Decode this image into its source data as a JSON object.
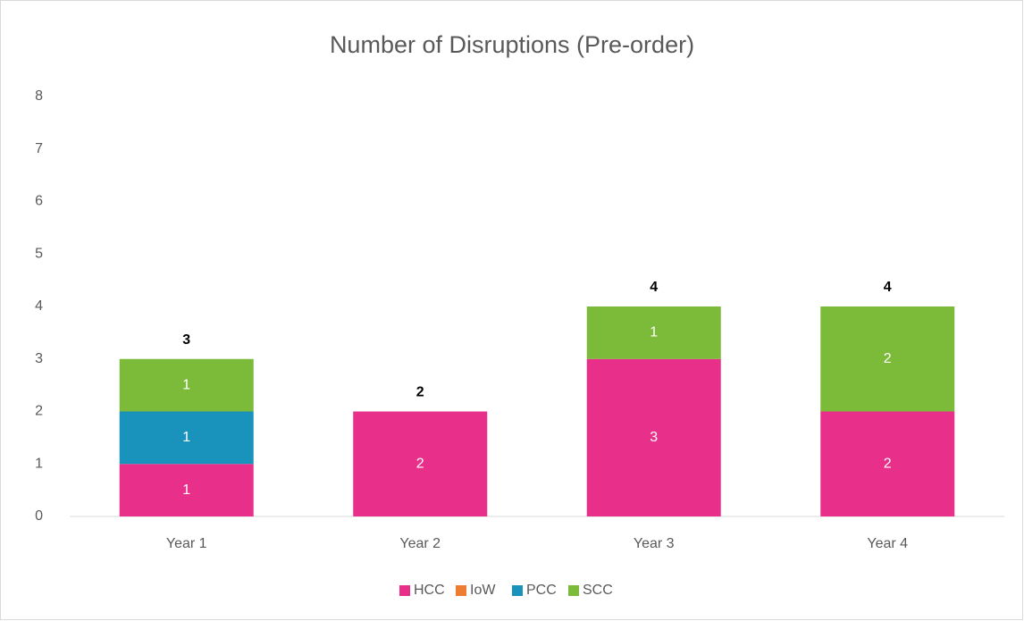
{
  "chart_data": {
    "type": "stacked_bar",
    "title": "Number of Disruptions (Pre-order)",
    "categories": [
      "Year 1",
      "Year 2",
      "Year 3",
      "Year 4"
    ],
    "series": [
      {
        "name": "HCC",
        "color": "#e8308a",
        "values": [
          1,
          2,
          3,
          2
        ]
      },
      {
        "name": "IoW",
        "color": "#ed7d31",
        "values": [
          0,
          0,
          0,
          0
        ]
      },
      {
        "name": "PCC",
        "color": "#1a93bc",
        "values": [
          1,
          0,
          0,
          0
        ]
      },
      {
        "name": "SCC",
        "color": "#7cba3a",
        "values": [
          1,
          0,
          1,
          2
        ]
      }
    ],
    "totals": [
      3,
      2,
      4,
      4
    ],
    "ylim": [
      0,
      8
    ],
    "yticks": [
      0,
      1,
      2,
      3,
      4,
      5,
      6,
      7,
      8
    ],
    "grid": false,
    "legend": "bottom"
  }
}
